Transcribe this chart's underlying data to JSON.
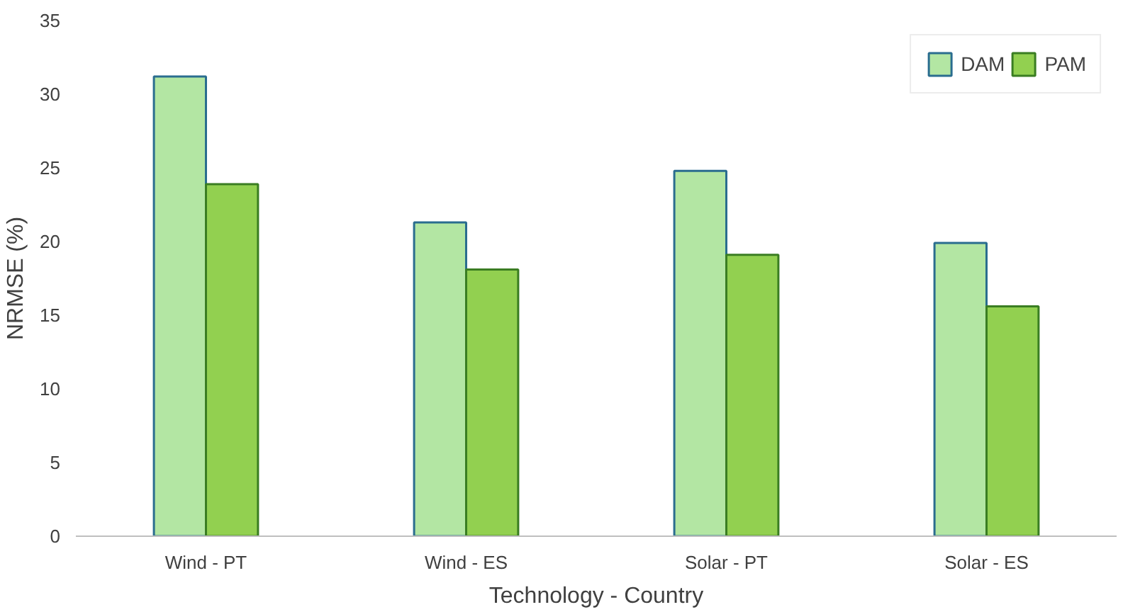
{
  "chart_data": {
    "type": "bar",
    "xlabel": "Technology - Country",
    "ylabel": "NRMSE (%)",
    "categories": [
      "Wind - PT",
      "Wind - ES",
      "Solar - PT",
      "Solar - ES"
    ],
    "series": [
      {
        "name": "DAM",
        "color": "#b3e6a3",
        "values": [
          31.2,
          21.3,
          24.8,
          19.9
        ]
      },
      {
        "name": "PAM",
        "color": "#92d050",
        "values": [
          23.9,
          18.1,
          19.1,
          15.6
        ]
      }
    ],
    "ylim": [
      0,
      35
    ],
    "yticks": [
      0,
      5,
      10,
      15,
      20,
      25,
      30,
      35
    ],
    "grid": false,
    "legend": "top right"
  }
}
